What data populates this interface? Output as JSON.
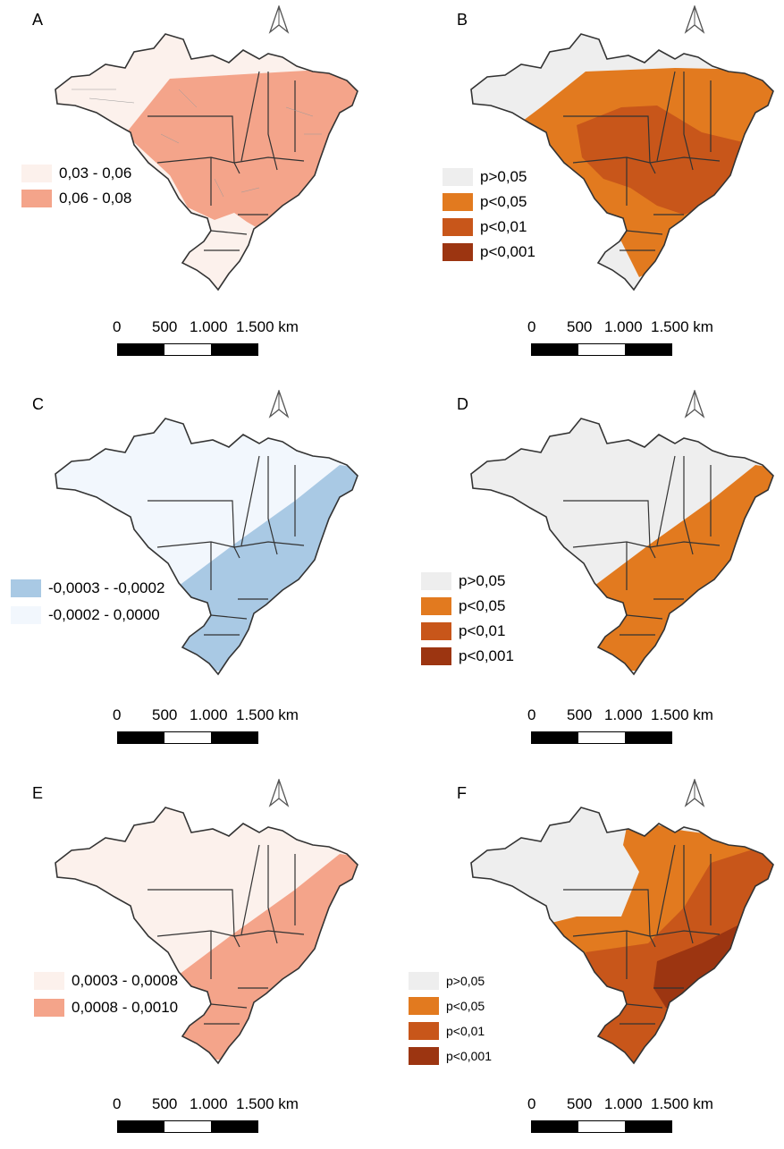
{
  "colors": {
    "low_pink": "#fcf1ec",
    "high_pink": "#f4a48a",
    "gray": "#eeeeee",
    "p05": "#e27a1f",
    "p01": "#c8561a",
    "p001": "#9c3511",
    "low_blue": "#f2f7fd",
    "high_blue": "#a9c9e4",
    "border": "#333333"
  },
  "scale": {
    "zero": "0",
    "s500": "500",
    "s1000": "1.000",
    "s1500": "1.500 km"
  },
  "panels": [
    {
      "letter": "A",
      "legend": [
        {
          "label": "0,03 - 0,06"
        },
        {
          "label": "0,06 - 0,08"
        }
      ]
    },
    {
      "letter": "B",
      "legend": [
        {
          "label": "p>0,05"
        },
        {
          "label": "p<0,05"
        },
        {
          "label": "p<0,01"
        },
        {
          "label": "p<0,001"
        }
      ]
    },
    {
      "letter": "C",
      "legend": [
        {
          "label": "-0,0003 - -0,0002"
        },
        {
          "label": "-0,0002 - 0,0000"
        }
      ]
    },
    {
      "letter": "D",
      "legend": [
        {
          "label": "p>0,05"
        },
        {
          "label": "p<0,05"
        },
        {
          "label": "p<0,01"
        },
        {
          "label": "p<0,001"
        }
      ]
    },
    {
      "letter": "E",
      "legend": [
        {
          "label": "0,0003 - 0,0008"
        },
        {
          "label": "0,0008 - 0,0010"
        }
      ]
    },
    {
      "letter": "F",
      "legend": [
        {
          "label": "p>0,05"
        },
        {
          "label": "p<0,05"
        },
        {
          "label": "p<0,01"
        },
        {
          "label": "p<0,001"
        }
      ]
    }
  ]
}
